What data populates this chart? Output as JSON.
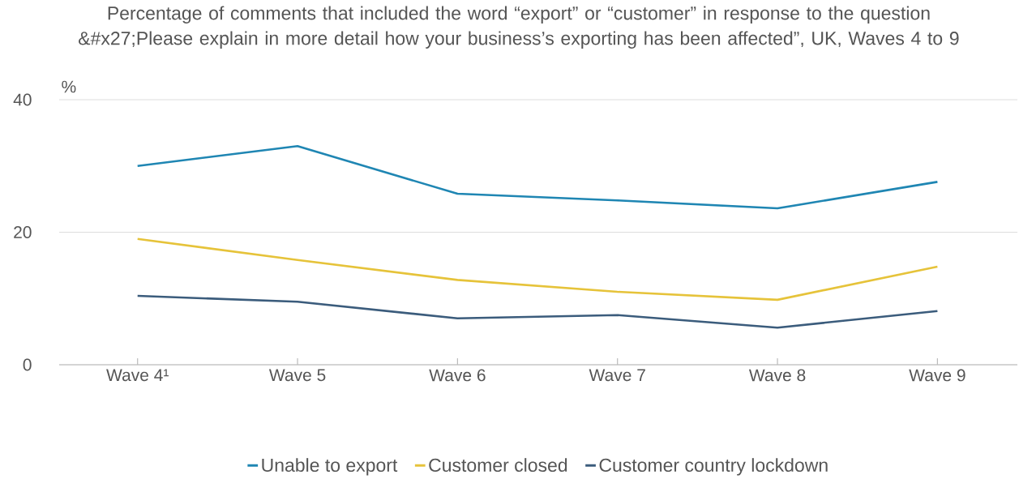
{
  "chart_data": {
    "type": "line",
    "title": "Percentage of comments that included the word “export” or “customer” in response to the question &#x27;Please explain in more detail how your business’s exporting has been affected”, UK, Waves 4 to 9",
    "ylabel": "%",
    "categories": [
      "Wave 4¹",
      "Wave 5",
      "Wave 6",
      "Wave 7",
      "Wave 8",
      "Wave 9"
    ],
    "series": [
      {
        "name": "Unable to export",
        "color": "#1f86b3",
        "values": [
          30.0,
          33.0,
          25.8,
          24.8,
          23.6,
          27.6
        ]
      },
      {
        "name": "Customer closed",
        "color": "#e6c33a",
        "values": [
          19.0,
          15.8,
          12.8,
          11.0,
          9.8,
          14.8
        ]
      },
      {
        "name": "Customer country lockdown",
        "color": "#3b5c7c",
        "values": [
          10.4,
          9.5,
          7.0,
          7.5,
          5.6,
          8.1
        ]
      }
    ],
    "ylim": [
      0,
      40
    ],
    "yticks": [
      0,
      20,
      40
    ],
    "grid": "y",
    "legend": "bottom",
    "marker": "none",
    "line_style": "solid"
  }
}
